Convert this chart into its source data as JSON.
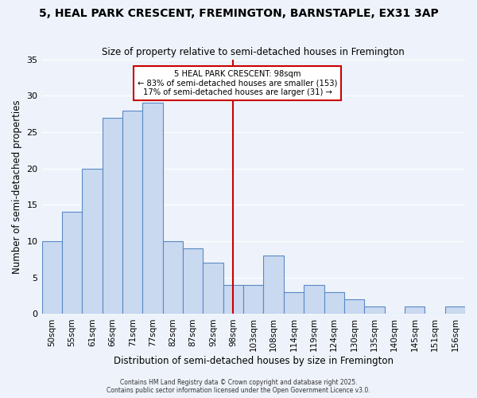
{
  "title": "5, HEAL PARK CRESCENT, FREMINGTON, BARNSTAPLE, EX31 3AP",
  "subtitle": "Size of property relative to semi-detached houses in Fremington",
  "xlabel": "Distribution of semi-detached houses by size in Fremington",
  "ylabel": "Number of semi-detached properties",
  "bar_labels": [
    "50sqm",
    "55sqm",
    "61sqm",
    "66sqm",
    "71sqm",
    "77sqm",
    "82sqm",
    "87sqm",
    "92sqm",
    "98sqm",
    "103sqm",
    "108sqm",
    "114sqm",
    "119sqm",
    "124sqm",
    "130sqm",
    "135sqm",
    "140sqm",
    "145sqm",
    "151sqm",
    "156sqm"
  ],
  "bar_values": [
    10,
    14,
    20,
    27,
    28,
    29,
    10,
    9,
    7,
    4,
    4,
    8,
    3,
    4,
    3,
    2,
    1,
    0,
    1,
    0,
    1
  ],
  "bar_color": "#c9d9f0",
  "bar_edge_color": "#5a8ac6",
  "vline_x": 9,
  "vline_color": "#cc0000",
  "annotation_title": "5 HEAL PARK CRESCENT: 98sqm",
  "annotation_line1": "← 83% of semi-detached houses are smaller (153)",
  "annotation_line2": "17% of semi-detached houses are larger (31) →",
  "annotation_box_edge": "#cc0000",
  "ylim": [
    0,
    35
  ],
  "yticks": [
    0,
    5,
    10,
    15,
    20,
    25,
    30,
    35
  ],
  "footer1": "Contains HM Land Registry data © Crown copyright and database right 2025.",
  "footer2": "Contains public sector information licensed under the Open Government Licence v3.0.",
  "bg_color": "#eef3fb",
  "plot_bg_color": "#eef3fb"
}
